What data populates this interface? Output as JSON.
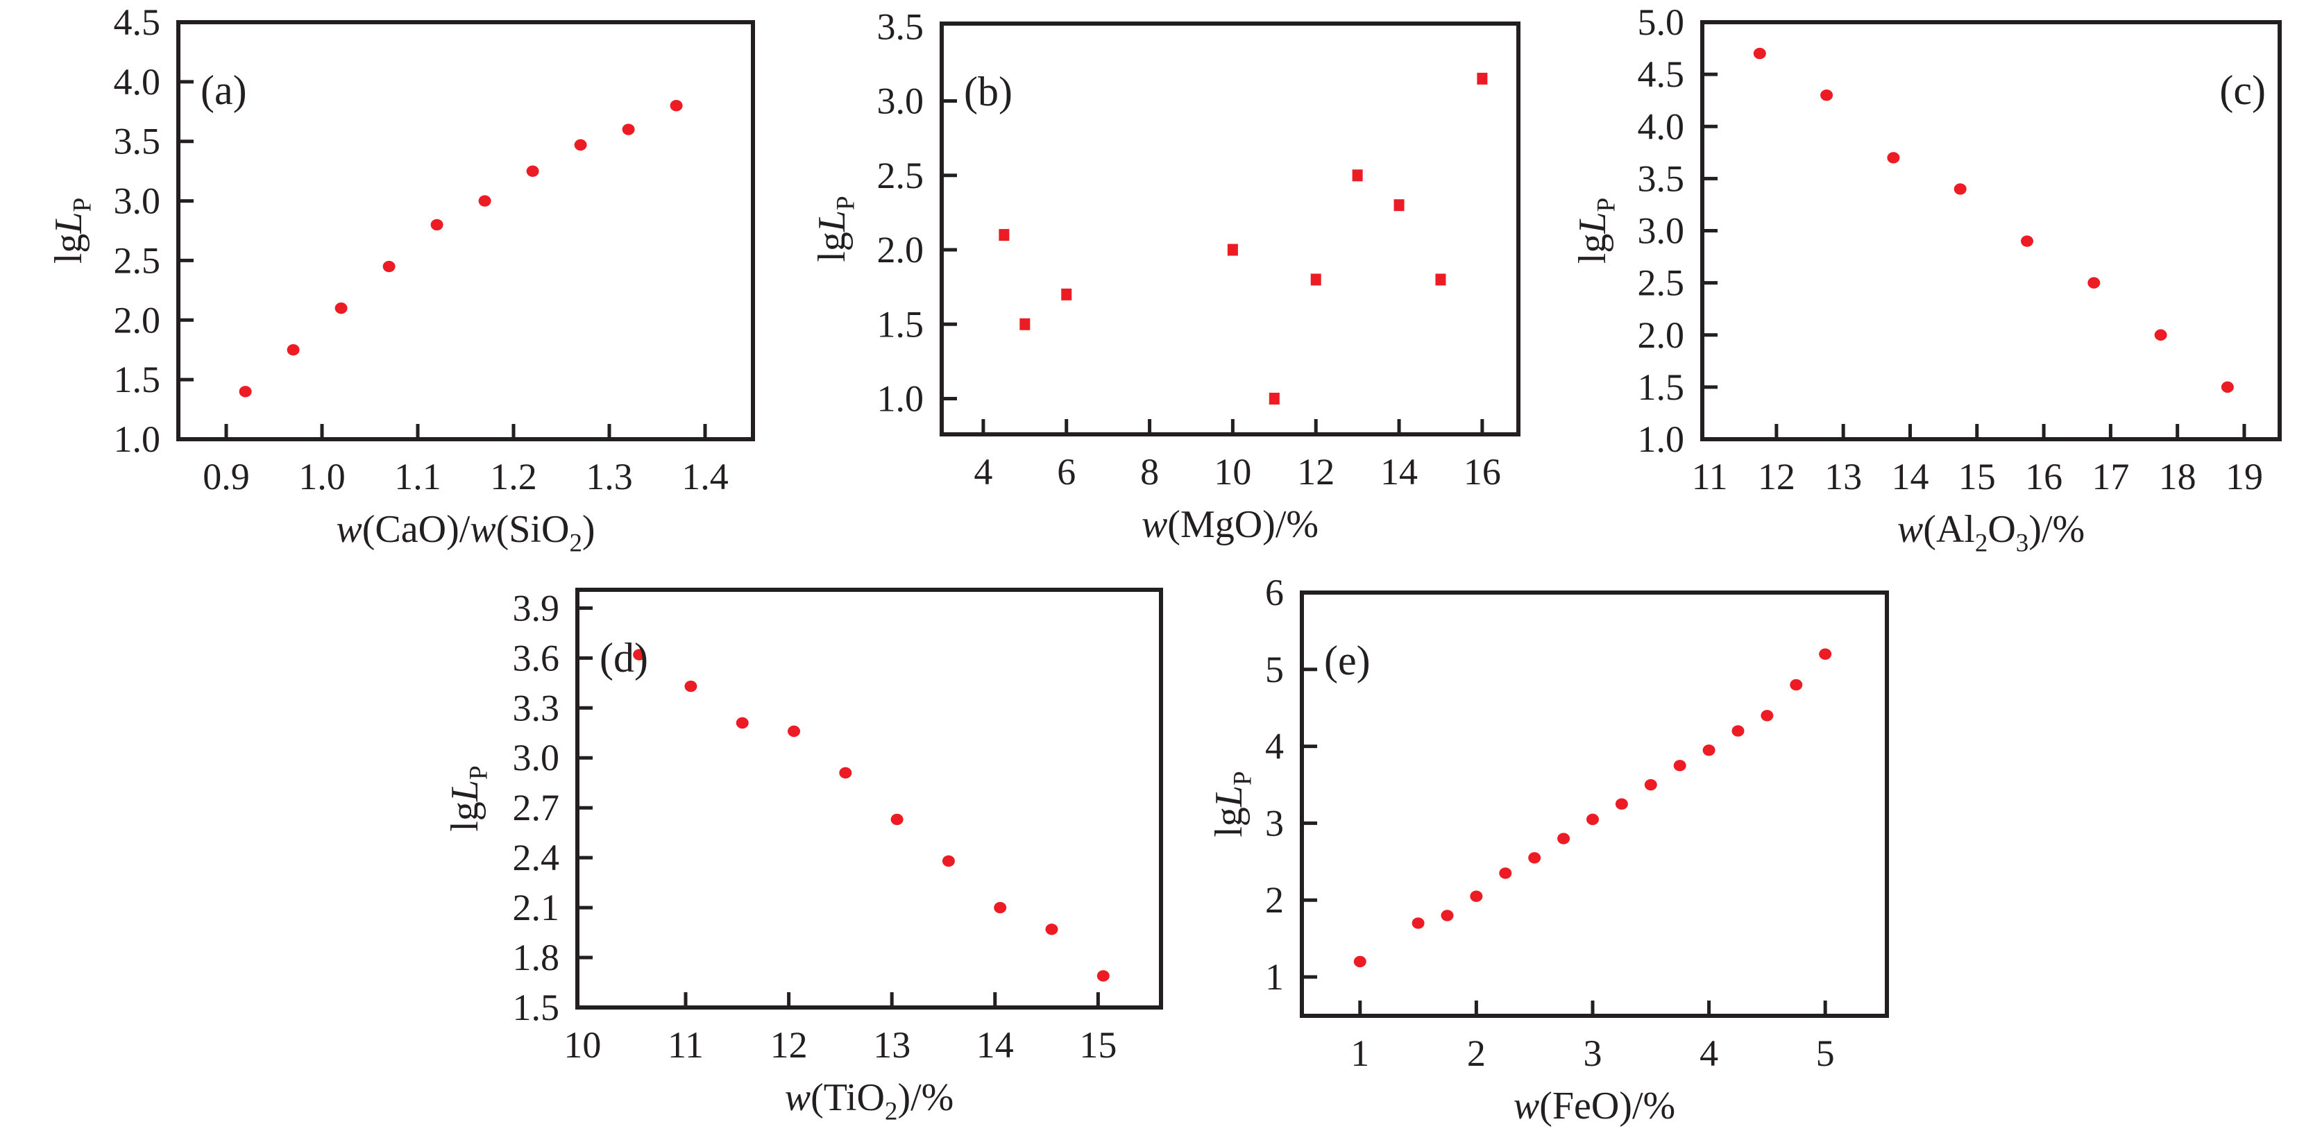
{
  "figure": {
    "background": "#ffffff",
    "axis_color": "#231f20",
    "accent_red": "#ed1c24",
    "panel_count": 5
  },
  "chart_data": [
    {
      "id": "a",
      "type": "scatter",
      "panel_label": "(a)",
      "panel_corner": "top-left",
      "marker": {
        "shape": "circle",
        "color": "#ed1c24",
        "size": 17
      },
      "xlabel_text": "w(CaO)/w(SiO2)",
      "ylabel_text": "lgLP",
      "xlabel_segments": [
        {
          "t": "w",
          "s": "i"
        },
        {
          "t": "(CaO)/",
          "s": "n"
        },
        {
          "t": "w",
          "s": "i"
        },
        {
          "t": "(SiO",
          "s": "n"
        },
        {
          "t": "2",
          "s": "sub"
        },
        {
          "t": ")",
          "s": "n"
        }
      ],
      "ylabel_segments": [
        {
          "t": "lg",
          "s": "n"
        },
        {
          "t": "L",
          "s": "i"
        },
        {
          "t": "P",
          "s": "sub"
        }
      ],
      "x_range": [
        0.85,
        1.45
      ],
      "y_range": [
        1.0,
        4.5
      ],
      "x_ticks": {
        "values": [
          0.9,
          1.0,
          1.1,
          1.2,
          1.3,
          1.4
        ],
        "labels": [
          "0.9",
          "1.0",
          "1.1",
          "1.2",
          "1.3",
          "1.4"
        ]
      },
      "y_ticks": {
        "values": [
          1.0,
          1.5,
          2.0,
          2.5,
          3.0,
          3.5,
          4.0,
          4.5
        ],
        "labels": [
          "1.0",
          "1.5",
          "2.0",
          "2.5",
          "3.0",
          "3.5",
          "4.0",
          "4.5"
        ]
      },
      "grid": false,
      "points": [
        [
          0.92,
          1.4
        ],
        [
          0.97,
          1.75
        ],
        [
          1.02,
          2.1
        ],
        [
          1.07,
          2.45
        ],
        [
          1.12,
          2.8
        ],
        [
          1.17,
          3.0
        ],
        [
          1.22,
          3.25
        ],
        [
          1.27,
          3.47
        ],
        [
          1.32,
          3.6
        ],
        [
          1.37,
          3.8
        ]
      ]
    },
    {
      "id": "b",
      "type": "scatter",
      "panel_label": "(b)",
      "panel_corner": "top-left",
      "marker": {
        "shape": "square",
        "color": "#ed1c24",
        "size": 16
      },
      "xlabel_text": "w(MgO)/%",
      "ylabel_text": "lgLP",
      "xlabel_segments": [
        {
          "t": "w",
          "s": "i"
        },
        {
          "t": "(MgO)/%",
          "s": "n"
        }
      ],
      "ylabel_segments": [
        {
          "t": "lg",
          "s": "n"
        },
        {
          "t": "L",
          "s": "i"
        },
        {
          "t": "P",
          "s": "sub"
        }
      ],
      "x_range": [
        3.0,
        16.87
      ],
      "y_range": [
        0.76,
        3.52
      ],
      "x_ticks": {
        "values": [
          4,
          6,
          8,
          10,
          12,
          14,
          16
        ],
        "labels": [
          "4",
          "6",
          "8",
          "10",
          "12",
          "14",
          "16"
        ]
      },
      "y_ticks": {
        "values": [
          1.0,
          1.5,
          2.0,
          2.5,
          3.0,
          3.5
        ],
        "labels": [
          "1.0",
          "1.5",
          "2.0",
          "2.5",
          "3.0",
          "3.5"
        ]
      },
      "grid": false,
      "points": [
        [
          4.5,
          2.1
        ],
        [
          5,
          1.5
        ],
        [
          6,
          1.7
        ],
        [
          10,
          2.0
        ],
        [
          11,
          1.0
        ],
        [
          12,
          1.8
        ],
        [
          13,
          2.5
        ],
        [
          14,
          2.3
        ],
        [
          15,
          1.8
        ],
        [
          16,
          3.15
        ]
      ]
    },
    {
      "id": "c",
      "type": "scatter",
      "panel_label": "(c)",
      "panel_corner": "top-right",
      "marker": {
        "shape": "circle",
        "color": "#ed1c24",
        "size": 17
      },
      "xlabel_text": "w(Al2O3)/%",
      "ylabel_text": "lgLP",
      "xlabel_segments": [
        {
          "t": "w",
          "s": "i"
        },
        {
          "t": "(Al",
          "s": "n"
        },
        {
          "t": "2",
          "s": "sub"
        },
        {
          "t": "O",
          "s": "n"
        },
        {
          "t": "3",
          "s": "sub"
        },
        {
          "t": ")/%",
          "s": "n"
        }
      ],
      "ylabel_segments": [
        {
          "t": "lg",
          "s": "n"
        },
        {
          "t": "L",
          "s": "i"
        },
        {
          "t": "P",
          "s": "sub"
        }
      ],
      "x_range": [
        10.89,
        19.53
      ],
      "y_range": [
        1.0,
        5.0
      ],
      "x_ticks": {
        "values": [
          11,
          12,
          13,
          14,
          15,
          16,
          17,
          18,
          19
        ],
        "labels": [
          "11",
          "12",
          "13",
          "14",
          "15",
          "16",
          "17",
          "18",
          "19"
        ]
      },
      "y_ticks": {
        "values": [
          1.0,
          1.5,
          2.0,
          2.5,
          3.0,
          3.5,
          4.0,
          4.5,
          5.0
        ],
        "labels": [
          "1.0",
          "1.5",
          "2.0",
          "2.5",
          "3.0",
          "3.5",
          "4.0",
          "4.5",
          "5.0"
        ]
      },
      "grid": false,
      "points": [
        [
          11.75,
          4.7
        ],
        [
          12.75,
          4.3
        ],
        [
          13.75,
          3.7
        ],
        [
          14.75,
          3.4
        ],
        [
          15.75,
          2.9
        ],
        [
          16.75,
          2.5
        ],
        [
          17.75,
          2.0
        ],
        [
          18.75,
          1.5
        ]
      ]
    },
    {
      "id": "d",
      "type": "scatter",
      "panel_label": "(d)",
      "panel_corner": "top-left",
      "marker": {
        "shape": "circle",
        "color": "#ed1c24",
        "size": 17
      },
      "xlabel_text": "w(TiO2)/%",
      "ylabel_text": "lgLP",
      "xlabel_segments": [
        {
          "t": "w",
          "s": "i"
        },
        {
          "t": "(TiO",
          "s": "n"
        },
        {
          "t": "2",
          "s": "sub"
        },
        {
          "t": ")/%",
          "s": "n"
        }
      ],
      "ylabel_segments": [
        {
          "t": "lg",
          "s": "n"
        },
        {
          "t": "L",
          "s": "i"
        },
        {
          "t": "P",
          "s": "sub"
        }
      ],
      "x_range": [
        9.95,
        15.61
      ],
      "y_range": [
        1.5,
        4.01
      ],
      "x_ticks": {
        "values": [
          10,
          11,
          12,
          13,
          14,
          15
        ],
        "labels": [
          "10",
          "11",
          "12",
          "13",
          "14",
          "15"
        ]
      },
      "y_ticks": {
        "values": [
          1.5,
          1.8,
          2.1,
          2.4,
          2.7,
          3.0,
          3.3,
          3.6,
          3.9
        ],
        "labels": [
          "1.5",
          "1.8",
          "2.1",
          "2.4",
          "2.7",
          "3.0",
          "3.3",
          "3.6",
          "3.9"
        ]
      },
      "grid": false,
      "points": [
        [
          10.55,
          3.62
        ],
        [
          11.05,
          3.43
        ],
        [
          11.55,
          3.21
        ],
        [
          12.05,
          3.16
        ],
        [
          12.55,
          2.91
        ],
        [
          13.05,
          2.63
        ],
        [
          13.55,
          2.38
        ],
        [
          14.05,
          2.1
        ],
        [
          14.55,
          1.97
        ],
        [
          15.05,
          1.69
        ]
      ]
    },
    {
      "id": "e",
      "type": "scatter",
      "panel_label": "(e)",
      "panel_corner": "top-left",
      "marker": {
        "shape": "circle",
        "color": "#ed1c24",
        "size": 17
      },
      "xlabel_text": "w(FeO)/%",
      "ylabel_text": "lgLP",
      "xlabel_segments": [
        {
          "t": "w",
          "s": "i"
        },
        {
          "t": "(FeO)/%",
          "s": "n"
        }
      ],
      "ylabel_segments": [
        {
          "t": "lg",
          "s": "n"
        },
        {
          "t": "L",
          "s": "i"
        },
        {
          "t": "P",
          "s": "sub"
        }
      ],
      "x_range": [
        0.5,
        5.53
      ],
      "y_range": [
        0.495,
        6.0
      ],
      "x_ticks": {
        "values": [
          1,
          2,
          3,
          4,
          5
        ],
        "labels": [
          "1",
          "2",
          "3",
          "4",
          "5"
        ]
      },
      "y_ticks": {
        "values": [
          1,
          2,
          3,
          4,
          5,
          6
        ],
        "labels": [
          "1",
          "2",
          "3",
          "4",
          "5",
          "6"
        ]
      },
      "grid": false,
      "points": [
        [
          1.0,
          1.2
        ],
        [
          1.5,
          1.7
        ],
        [
          1.75,
          1.8
        ],
        [
          2.0,
          2.05
        ],
        [
          2.25,
          2.35
        ],
        [
          2.5,
          2.55
        ],
        [
          2.75,
          2.8
        ],
        [
          3.0,
          3.05
        ],
        [
          3.25,
          3.25
        ],
        [
          3.5,
          3.5
        ],
        [
          3.75,
          3.75
        ],
        [
          4.0,
          3.95
        ],
        [
          4.25,
          4.2
        ],
        [
          4.5,
          4.4
        ],
        [
          4.75,
          4.8
        ],
        [
          5.0,
          5.2
        ]
      ]
    }
  ]
}
